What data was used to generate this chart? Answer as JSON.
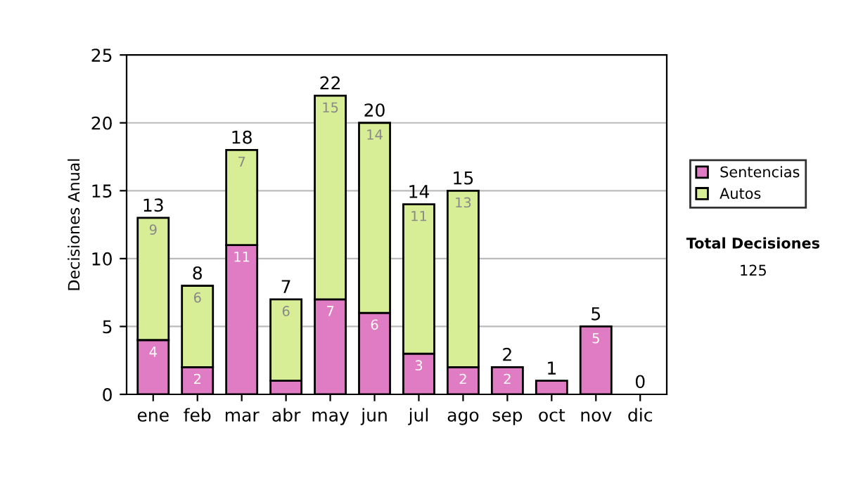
{
  "chart_data": {
    "type": "bar",
    "stacked": true,
    "ylabel": "Decisiones Anual",
    "categories": [
      "ene",
      "feb",
      "mar",
      "abr",
      "may",
      "jun",
      "jul",
      "ago",
      "sep",
      "oct",
      "nov",
      "dic"
    ],
    "series": [
      {
        "name": "Sentencias",
        "color": "#e07cc4",
        "values": [
          4,
          2,
          11,
          1,
          7,
          6,
          3,
          2,
          2,
          1,
          5,
          0
        ],
        "value_labels": [
          "4",
          "2",
          "11",
          null,
          "7",
          "6",
          "3",
          "2",
          "2",
          null,
          "5",
          null
        ]
      },
      {
        "name": "Autos",
        "color": "#d8ee96",
        "values": [
          9,
          6,
          7,
          6,
          15,
          14,
          11,
          13,
          0,
          0,
          0,
          0
        ],
        "value_labels": [
          "9",
          "6",
          "7",
          "6",
          "15",
          "14",
          "11",
          "13",
          null,
          null,
          null,
          null
        ]
      }
    ],
    "totals": [
      "13",
      "8",
      "18",
      "7",
      "22",
      "20",
      "14",
      "15",
      "2",
      "1",
      "5",
      "0"
    ],
    "ylim": [
      0,
      25
    ],
    "yticks": [
      0,
      5,
      10,
      15,
      20,
      25
    ],
    "grid": "y",
    "legend": "right",
    "annotations": [
      "Total Decisiones",
      "125"
    ]
  }
}
